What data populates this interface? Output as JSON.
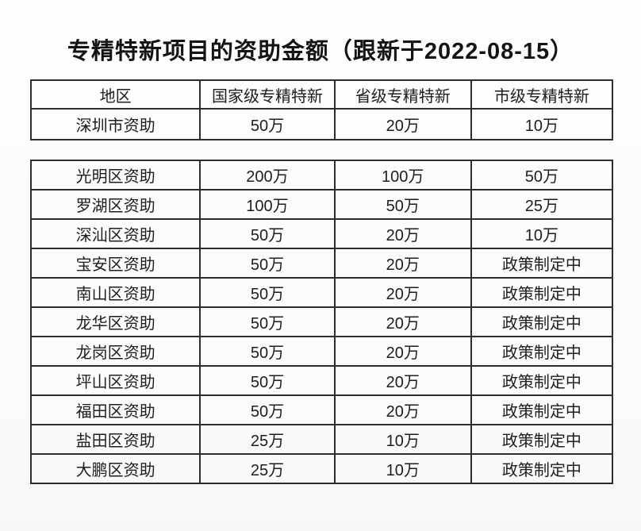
{
  "page": {
    "title": "专精特新项目的资助金额（跟新于2022-08-15）"
  },
  "columns": {
    "region": "地区",
    "national": "国家级专精特新",
    "provincial": "省级专精特新",
    "municipal": "市级专精特新"
  },
  "city_table": {
    "rows": [
      {
        "region": "深圳市资助",
        "national": "50万",
        "provincial": "20万",
        "municipal": "10万"
      }
    ]
  },
  "district_table": {
    "rows": [
      {
        "region": "光明区资助",
        "national": "200万",
        "provincial": "100万",
        "municipal": "50万"
      },
      {
        "region": "罗湖区资助",
        "national": "100万",
        "provincial": "50万",
        "municipal": "25万"
      },
      {
        "region": "深汕区资助",
        "national": "50万",
        "provincial": "20万",
        "municipal": "10万"
      },
      {
        "region": "宝安区资助",
        "national": "50万",
        "provincial": "20万",
        "municipal": "政策制定中"
      },
      {
        "region": "南山区资助",
        "national": "50万",
        "provincial": "20万",
        "municipal": "政策制定中"
      },
      {
        "region": "龙华区资助",
        "national": "50万",
        "provincial": "20万",
        "municipal": "政策制定中"
      },
      {
        "region": "龙岗区资助",
        "national": "50万",
        "provincial": "20万",
        "municipal": "政策制定中"
      },
      {
        "region": "坪山区资助",
        "national": "50万",
        "provincial": "20万",
        "municipal": "政策制定中"
      },
      {
        "region": "福田区资助",
        "national": "50万",
        "provincial": "20万",
        "municipal": "政策制定中"
      },
      {
        "region": "盐田区资助",
        "national": "25万",
        "provincial": "10万",
        "municipal": "政策制定中"
      },
      {
        "region": "大鹏区资助",
        "national": "25万",
        "provincial": "10万",
        "municipal": "政策制定中"
      }
    ]
  },
  "colors": {
    "border": "#2d2d2d",
    "text": "#1d1d1d",
    "background": "#fdfdfd"
  }
}
